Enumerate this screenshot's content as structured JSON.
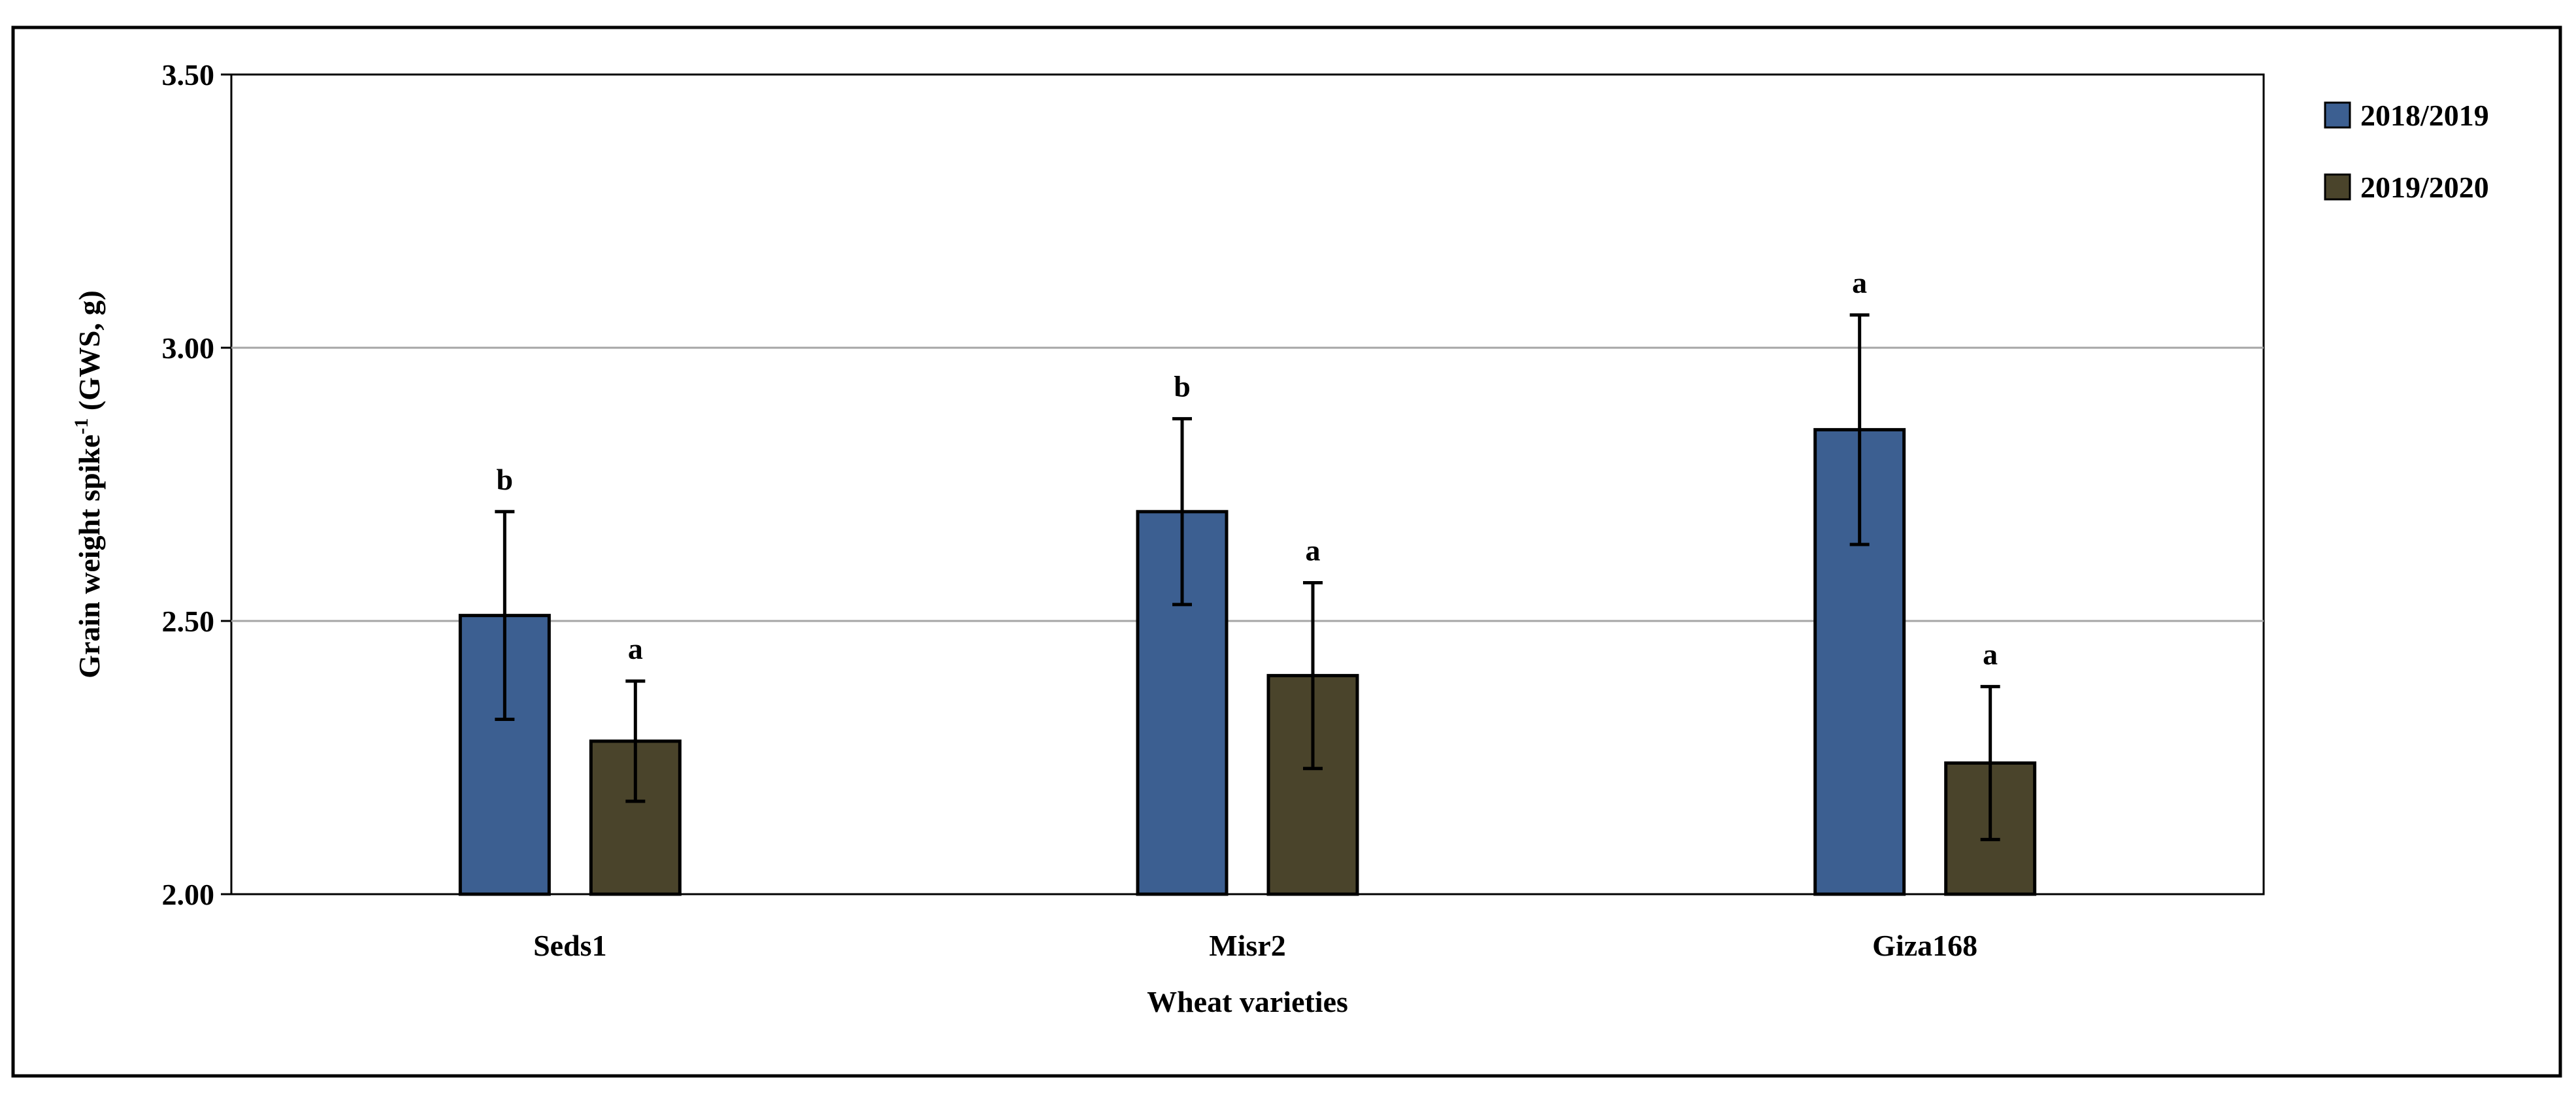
{
  "chart_data": {
    "type": "bar",
    "title": "",
    "xlabel": "Wheat varieties",
    "ylabel_main": "Grain weight spike",
    "ylabel_sup": "-1",
    "ylabel_tail": " (GWS, g)",
    "categories": [
      "Seds1",
      "Misr2",
      "Giza168"
    ],
    "ylim": [
      2.0,
      3.5
    ],
    "yticks": [
      2.0,
      2.5,
      3.0,
      3.5
    ],
    "ytick_labels": [
      "2.00",
      "2.50",
      "3.00",
      "3.50"
    ],
    "grid": true,
    "legend_position": "top-right",
    "series": [
      {
        "name": "2018/2019",
        "color": "#3c5f91",
        "values": [
          2.51,
          2.7,
          2.85
        ],
        "errors": [
          0.19,
          0.17,
          0.21
        ],
        "letters": [
          "b",
          "b",
          "a"
        ]
      },
      {
        "name": "2019/2020",
        "color": "#4a442b",
        "values": [
          2.28,
          2.4,
          2.24
        ],
        "errors": [
          0.11,
          0.17,
          0.14
        ],
        "letters": [
          "a",
          "a",
          "a"
        ]
      }
    ]
  }
}
